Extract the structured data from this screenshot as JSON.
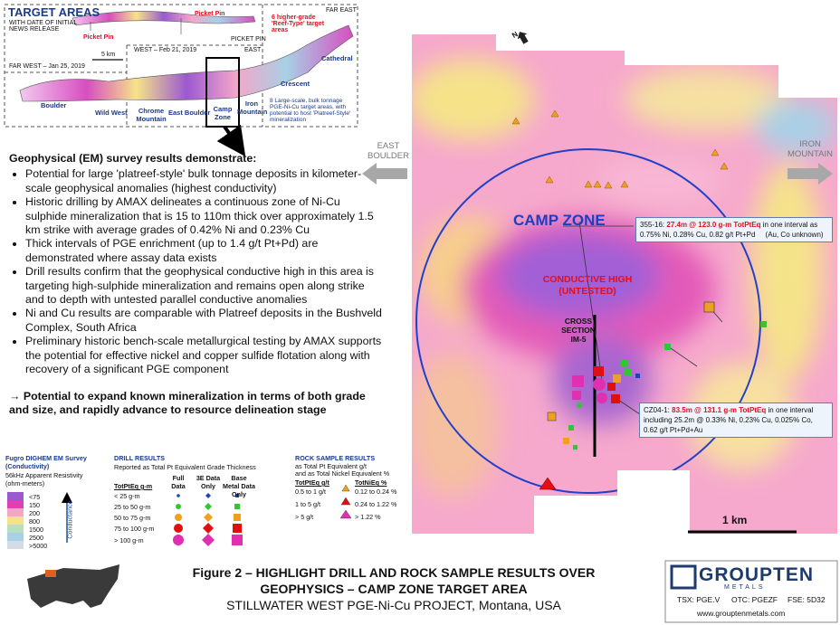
{
  "inset": {
    "title": "TARGET AREAS",
    "subtitle": "WITH DATE OF INITIAL NEWS RELEASE",
    "picket_pin_left": "Picket Pin",
    "picket_pin_right": "Picket Pin",
    "far_east": "FAR EAST",
    "reef_note": "6 higher-grade 'Reef-Type' target areas",
    "scale": "5 km",
    "picket_pin_zone": "PICKET PIN",
    "west": "WEST – Feb 21, 2019",
    "east": "EAST",
    "far_west": "FAR WEST – Jan 25, 2019",
    "cathedral": "Cathedral",
    "crescent": "Crescent",
    "boulder": "Boulder",
    "wild_west": "Wild West",
    "chrome_mountain": "Chrome Mountain",
    "east_boulder": "East Boulder",
    "camp_zone": "Camp Zone",
    "iron_mountain": "Iron Mountain",
    "bulk_note": "8 Large-scale, bulk tonnage PGE-Ni-Cu target areas, with potential to host 'Platreef-Style' mineralization"
  },
  "text": {
    "heading": "Geophysical (EM) survey results demonstrate:",
    "bullets": [
      "Potential for large 'platreef-style' bulk tonnage deposits in kilometer-scale geophysical anomalies (highest conductivity)",
      "Historic drilling by AMAX delineates a continuous zone of Ni-Cu sulphide mineralization that is 15 to 110m thick over approximately 1.5 km strike with average grades of 0.42% Ni and 0.23% Cu",
      "Thick intervals of PGE enrichment (up to 1.4 g/t Pt+Pd) are demonstrated where assay data exists",
      "Drill results confirm that the geophysical conductive high in this area is targeting high-sulphide mineralization and remains open along strike and to depth with untested parallel conductive anomalies",
      "Ni and Cu results are comparable with Platreef deposits in the Bushveld Complex, South Africa",
      "Preliminary historic bench-scale metallurgical testing by AMAX supports the potential for effective nickel and copper sulfide flotation along with recovery of a significant PGE component"
    ],
    "conclusion": "→ Potential to expand known mineralization in terms of both grade and size, and rapidly advance to resource delineation stage"
  },
  "map": {
    "north": "N",
    "east_boulder": "EAST BOULDER",
    "iron_mountain": "IRON MOUNTAIN",
    "camp_zone": "CAMP ZONE",
    "conductive_high": [
      "CONDUCTIVE HIGH",
      "(UNTESTED)"
    ],
    "cross_section": [
      "CROSS",
      "SECTION",
      "IM-5"
    ],
    "scale": "1 km",
    "callouts": [
      {
        "id": "355-16:",
        "highlight": "27.4m @ 123.0 g-m TotPtEq",
        "text": "in one interval as 0.75% Ni, 0.28% Cu, 0.82 g/t Pt+Pd     (Au, Co unknown)"
      },
      {
        "id": "CZ04-1:",
        "highlight": "83.5m @ 131.1 g-m TotPtEq",
        "text": "in one interval including 25.2m @ 0.33% Ni, 0.23% Cu, 0.025% Co, 0.62 g/t Pt+Pd+Au"
      }
    ]
  },
  "legend": {
    "em": {
      "title": "Fugro DIGHEM EM Survey",
      "subtitle": "(Conductivity)",
      "units": "56kHz Apparent Resistivity",
      "units2": "(ohm-meters)",
      "classes": [
        "<75",
        "150",
        "200",
        "800",
        "1500",
        "2500",
        ">5000"
      ],
      "axis": "Conductance"
    },
    "drill": {
      "title": "DRILL RESULTS",
      "subtitle": "Reported as Total Pt Equivalent Grade Thickness",
      "headers": [
        "TotPtEq g-m",
        "Full Data",
        "3E Data Only",
        "Base Metal Data Only"
      ],
      "rows": [
        "< 25 g-m",
        "25 to 50 g-m",
        "50 to 75 g-m",
        "75 to 100 g-m",
        "> 100 g-m"
      ]
    },
    "rock": {
      "title": "ROCK SAMPLE RESULTS",
      "subtitle": [
        "as Total Pt Equivalent g/t",
        "and as Total Nickel Equivalent %"
      ],
      "headers": [
        "TotPtEq g/t",
        "TotNiEq %"
      ],
      "rows": [
        [
          "0.5 to 1 g/t",
          "0.12 to 0.24 %"
        ],
        [
          "1 to 5 g/t",
          "0.24 to 1.22 %"
        ],
        [
          "> 5 g/t",
          "> 1.22 %"
        ]
      ]
    }
  },
  "caption": {
    "line1": "Figure 2  –  HIGHLIGHT DRILL AND ROCK SAMPLE RESULTS OVER",
    "line2": "GEOPHYSICS – CAMP ZONE TARGET AREA",
    "line3": "STILLWATER WEST PGE-Ni-Cu PROJECT, Montana, USA"
  },
  "logo": {
    "name": "GROUPTEN",
    "sub": "METALS",
    "tickers": [
      "TSX: PGE.V",
      "OTC: PGEZF",
      "FSE: 5D32"
    ],
    "url": "www.grouptenmetals.com"
  }
}
